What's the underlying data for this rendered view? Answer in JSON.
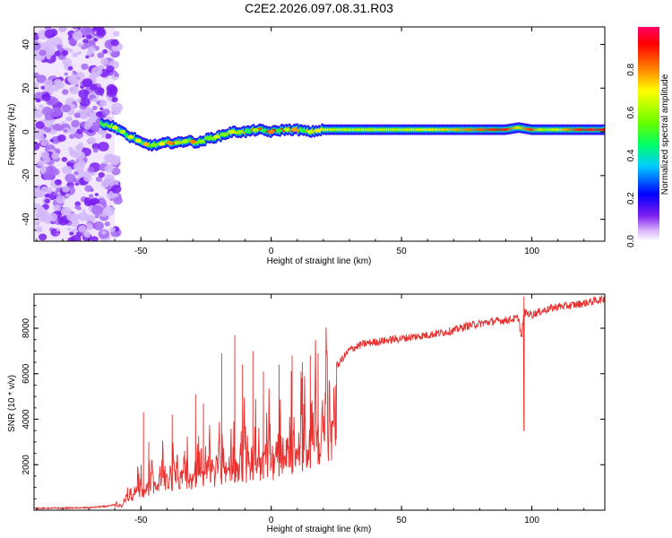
{
  "title": "C2E2.2026.097.08.31.R03",
  "chart_data": [
    {
      "type": "heatmap",
      "name": "spectrogram",
      "xlabel": "Height of straight line (km)",
      "ylabel": "Frequency (Hz)",
      "xlim": [
        -91,
        128
      ],
      "ylim": [
        -50,
        48
      ],
      "xticks": [
        -50,
        0,
        50,
        100
      ],
      "yticks": [
        -40,
        -20,
        0,
        20,
        40
      ],
      "colorbar": {
        "label": "Normalized spectral amplitude",
        "range": [
          0,
          1
        ],
        "ticks": [
          0.0,
          0.2,
          0.4,
          0.6,
          0.8
        ],
        "colormap": [
          "#ffffff",
          "#d8b4f8",
          "#7c1cf0",
          "#0000ff",
          "#00ccff",
          "#00ff66",
          "#66ff00",
          "#ffff00",
          "#ff8800",
          "#ff0000",
          "#ff0066"
        ]
      },
      "noise_region_x": [
        -91,
        -60
      ],
      "ridge": {
        "x": [
          -65,
          -62,
          -58,
          -55,
          -52,
          -50,
          -47,
          -44,
          -40,
          -36,
          -32,
          -28,
          -24,
          -20,
          -15,
          -10,
          -5,
          0,
          5,
          10,
          15,
          20,
          25,
          30,
          40,
          50,
          60,
          70,
          80,
          90,
          95,
          100,
          105,
          110,
          120,
          128
        ],
        "y": [
          4,
          3,
          1,
          -2,
          -3,
          -5,
          -6,
          -6,
          -5,
          -5,
          -4,
          -5,
          -3,
          -2,
          0,
          0,
          1,
          0,
          1,
          1,
          0,
          1,
          1,
          1,
          1,
          1,
          1,
          1,
          1,
          1,
          2,
          1,
          1,
          1,
          1,
          1
        ],
        "amplitude": [
          0.5,
          0.6,
          0.5,
          0.45,
          0.5,
          0.5,
          0.55,
          0.55,
          0.6,
          0.95,
          0.55,
          0.55,
          0.6,
          0.6,
          0.7,
          0.8,
          0.85,
          0.95,
          0.9,
          0.8,
          0.75,
          0.7,
          0.65,
          0.65,
          0.65,
          0.65,
          0.7,
          0.75,
          0.85,
          0.95,
          0.7,
          0.9,
          0.6,
          0.7,
          0.95,
          0.95
        ]
      }
    },
    {
      "type": "line",
      "name": "snr",
      "xlabel": "Height of straight line (km)",
      "ylabel": "SNR (10 * v/v)",
      "xlim": [
        -91,
        128
      ],
      "ylim": [
        0,
        9500
      ],
      "xticks": [
        -50,
        0,
        50,
        100
      ],
      "yticks": [
        2000,
        4000,
        6000,
        8000
      ],
      "color": "#e8312f",
      "envelope": {
        "x": [
          -91,
          -80,
          -70,
          -62,
          -58,
          -55,
          -52,
          -48,
          -45,
          -40,
          -35,
          -30,
          -25,
          -20,
          -15,
          -10,
          -5,
          0,
          5,
          10,
          15,
          20,
          25,
          30,
          35,
          40,
          50,
          60,
          70,
          75,
          80,
          85,
          90,
          95,
          96,
          97,
          100,
          105,
          110,
          115,
          120,
          128
        ],
        "y": [
          50,
          60,
          80,
          150,
          300,
          700,
          1200,
          1500,
          1800,
          2000,
          2300,
          2500,
          2700,
          2800,
          3000,
          3200,
          3400,
          3600,
          3800,
          4100,
          4600,
          5400,
          6300,
          7050,
          7300,
          7400,
          7550,
          7700,
          7900,
          8100,
          8200,
          8300,
          8350,
          8450,
          7500,
          8700,
          8600,
          8800,
          8950,
          9000,
          9100,
          9300
        ]
      },
      "spikes": [
        {
          "x": -49,
          "y": 4300
        },
        {
          "x": -47,
          "y": 3000
        },
        {
          "x": -38,
          "y": 4200
        },
        {
          "x": -29,
          "y": 5100
        },
        {
          "x": -26,
          "y": 4700
        },
        {
          "x": -19,
          "y": 6900
        },
        {
          "x": -14,
          "y": 7700
        },
        {
          "x": -11,
          "y": 6400
        },
        {
          "x": -7,
          "y": 7000
        },
        {
          "x": -3,
          "y": 6100
        },
        {
          "x": 3,
          "y": 6400
        },
        {
          "x": 8,
          "y": 6800
        },
        {
          "x": 12,
          "y": 6500
        },
        {
          "x": 15,
          "y": 6800
        },
        {
          "x": 18,
          "y": 6900
        },
        {
          "x": 97,
          "y": 9400
        }
      ]
    }
  ]
}
